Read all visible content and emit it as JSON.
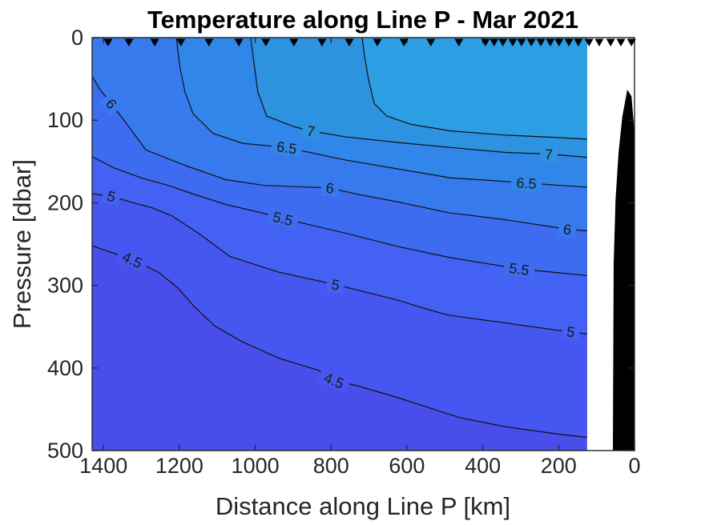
{
  "title": "Temperature along Line P - Mar 2021",
  "colors": {
    "background": "#ffffff",
    "axis": "#262626",
    "contour_line": "#111111",
    "station_marker": "#000000",
    "bathymetry": "#000000",
    "label_text": "#1a1a1a"
  },
  "chart_data": {
    "type": "contour",
    "title": "Temperature along Line P - Mar 2021",
    "xlabel": "Distance along Line P [km]",
    "ylabel": "Pressure [dbar]",
    "x_ticks": [
      1400,
      1200,
      1000,
      800,
      600,
      400,
      200,
      0
    ],
    "y_ticks": [
      0,
      100,
      200,
      300,
      400,
      500
    ],
    "xlim": [
      1430,
      0
    ],
    "ylim": [
      0,
      500
    ],
    "x_axis_reversed": true,
    "y_axis_increases_downward": true,
    "grid": false,
    "legend": "none",
    "contour_levels_degC": [
      4.5,
      5,
      5.5,
      6,
      6.5,
      7,
      7.5
    ],
    "data_min_km": 125,
    "bands": [
      {
        "min": 4.0,
        "max": 4.5,
        "color": "#494DE9"
      },
      {
        "min": 4.5,
        "max": 5.0,
        "color": "#4656F1"
      },
      {
        "min": 5.0,
        "max": 5.5,
        "color": "#4361F2"
      },
      {
        "min": 5.5,
        "max": 6.0,
        "color": "#3D6CF1"
      },
      {
        "min": 6.0,
        "max": 6.5,
        "color": "#377AEE"
      },
      {
        "min": 6.5,
        "max": 7.0,
        "color": "#3187E9"
      },
      {
        "min": 7.0,
        "max": 7.5,
        "color": "#2D92E0"
      },
      {
        "min": 7.5,
        "max": 8.0,
        "color": "#2B9EE4"
      }
    ],
    "contours": [
      {
        "level": 4.5,
        "points": [
          [
            1430,
            252
          ],
          [
            1324,
            269
          ],
          [
            1255,
            284
          ],
          [
            1204,
            303
          ],
          [
            1162,
            325
          ],
          [
            1107,
            349
          ],
          [
            1035,
            368
          ],
          [
            938,
            388
          ],
          [
            832,
            403
          ],
          [
            792,
            415
          ],
          [
            727,
            422
          ],
          [
            623,
            436
          ],
          [
            462,
            460
          ],
          [
            342,
            471
          ],
          [
            201,
            480
          ],
          [
            125,
            484
          ]
        ],
        "labels": [
          {
            "text": "4.5",
            "km": 1324,
            "dbar": 269,
            "angle": 25
          },
          {
            "text": "4.5",
            "km": 792,
            "dbar": 415,
            "angle": 22
          }
        ]
      },
      {
        "level": 5,
        "points": [
          [
            1430,
            189
          ],
          [
            1379,
            192
          ],
          [
            1329,
            199
          ],
          [
            1272,
            206
          ],
          [
            1219,
            216
          ],
          [
            1149,
            237
          ],
          [
            1067,
            265
          ],
          [
            938,
            284
          ],
          [
            788,
            299
          ],
          [
            623,
            318
          ],
          [
            553,
            328
          ],
          [
            490,
            336
          ],
          [
            348,
            345
          ],
          [
            208,
            354
          ],
          [
            168,
            356
          ],
          [
            125,
            359
          ]
        ],
        "labels": [
          {
            "text": "5",
            "km": 1379,
            "dbar": 192,
            "angle": 16
          },
          {
            "text": "5",
            "km": 788,
            "dbar": 299,
            "angle": 12
          },
          {
            "text": "5",
            "km": 168,
            "dbar": 356,
            "angle": 8
          }
        ]
      },
      {
        "level": 5.5,
        "points": [
          [
            1430,
            144
          ],
          [
            1371,
            158
          ],
          [
            1299,
            170
          ],
          [
            1229,
            179
          ],
          [
            1166,
            189
          ],
          [
            1077,
            202
          ],
          [
            993,
            211
          ],
          [
            927,
            219
          ],
          [
            760,
            237
          ],
          [
            623,
            253
          ],
          [
            490,
            266
          ],
          [
            384,
            274
          ],
          [
            304,
            280
          ],
          [
            194,
            285
          ],
          [
            125,
            288
          ]
        ],
        "labels": [
          {
            "text": "5.5",
            "km": 927,
            "dbar": 219,
            "angle": 14
          },
          {
            "text": "5.5",
            "km": 304,
            "dbar": 280,
            "angle": 8
          }
        ]
      },
      {
        "level": 6,
        "points": [
          [
            1430,
            47
          ],
          [
            1409,
            63
          ],
          [
            1379,
            80
          ],
          [
            1335,
            107
          ],
          [
            1288,
            136
          ],
          [
            1183,
            155
          ],
          [
            1077,
            172
          ],
          [
            976,
            179
          ],
          [
            803,
            182
          ],
          [
            727,
            190
          ],
          [
            623,
            199
          ],
          [
            490,
            212
          ],
          [
            348,
            220
          ],
          [
            177,
            232
          ],
          [
            125,
            234
          ]
        ],
        "labels": [
          {
            "text": "6",
            "km": 1379,
            "dbar": 80,
            "angle": 52
          },
          {
            "text": "6",
            "km": 803,
            "dbar": 182,
            "angle": 5
          },
          {
            "text": "6",
            "km": 177,
            "dbar": 232,
            "angle": 8
          }
        ]
      },
      {
        "level": 6.5,
        "points": [
          [
            1208,
            0
          ],
          [
            1198,
            37
          ],
          [
            1185,
            66
          ],
          [
            1164,
            92
          ],
          [
            1111,
            116
          ],
          [
            1033,
            128
          ],
          [
            917,
            133
          ],
          [
            765,
            148
          ],
          [
            623,
            159
          ],
          [
            484,
            170
          ],
          [
            378,
            173
          ],
          [
            285,
            176
          ],
          [
            194,
            179
          ],
          [
            125,
            181
          ]
        ],
        "labels": [
          {
            "text": "6.5",
            "km": 917,
            "dbar": 133,
            "angle": 8
          },
          {
            "text": "6.5",
            "km": 285,
            "dbar": 176,
            "angle": 4
          }
        ]
      },
      {
        "level": 7,
        "points": [
          [
            1012,
            0
          ],
          [
            1003,
            32
          ],
          [
            993,
            66
          ],
          [
            970,
            95
          ],
          [
            896,
            108
          ],
          [
            853,
            113
          ],
          [
            765,
            120
          ],
          [
            623,
            127
          ],
          [
            484,
            133
          ],
          [
            342,
            139
          ],
          [
            226,
            141
          ],
          [
            125,
            145
          ]
        ],
        "labels": [
          {
            "text": "7",
            "km": 853,
            "dbar": 113,
            "angle": 9
          },
          {
            "text": "7",
            "km": 226,
            "dbar": 141,
            "angle": 3
          }
        ]
      },
      {
        "level": 7.5,
        "points": [
          [
            718,
            0
          ],
          [
            712,
            22
          ],
          [
            701,
            51
          ],
          [
            686,
            80
          ],
          [
            653,
            95
          ],
          [
            589,
            105
          ],
          [
            484,
            113
          ],
          [
            342,
            118
          ],
          [
            201,
            121
          ],
          [
            125,
            123
          ]
        ],
        "labels": []
      }
    ],
    "stations_km": [
      1388,
      1333,
      1265,
      1196,
      1122,
      1043,
      972,
      898,
      824,
      752,
      678,
      608,
      537,
      463,
      393,
      370,
      347,
      321,
      298,
      272,
      247,
      222,
      199,
      173,
      148,
      120,
      93,
      63,
      36,
      8
    ],
    "bathymetry_profile_km_dbar": [
      [
        19,
        63
      ],
      [
        32,
        95
      ],
      [
        42,
        139
      ],
      [
        50,
        197
      ],
      [
        55,
        274
      ],
      [
        57,
        500
      ],
      [
        1,
        500
      ],
      [
        1,
        109
      ],
      [
        8,
        71
      ]
    ]
  }
}
